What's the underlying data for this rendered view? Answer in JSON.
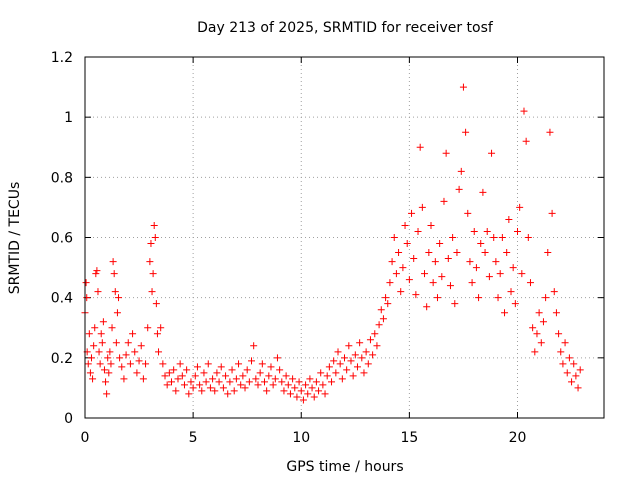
{
  "chart_data": {
    "type": "scatter",
    "title": "Day 213 of 2025, SRMTID for receiver tosf",
    "xlabel": "GPS time / hours",
    "ylabel": "SRMTID / TECUs",
    "xlim": [
      0,
      24
    ],
    "ylim": [
      0,
      1.2
    ],
    "x_ticks": [
      0,
      5,
      10,
      15,
      20
    ],
    "x_tick_labels": [
      "0",
      "5",
      "10",
      "15",
      "20"
    ],
    "y_ticks": [
      0,
      0.2,
      0.4,
      0.6,
      0.8,
      1.0,
      1.2
    ],
    "y_tick_labels": [
      "0",
      "0.2",
      "0.4",
      "0.6",
      "0.8",
      "1",
      "1.2"
    ],
    "grid": true,
    "marker": "+",
    "series_color": "#ff0000",
    "series": [
      {
        "name": "SRMTID",
        "points": [
          [
            0.0,
            0.35
          ],
          [
            0.05,
            0.45
          ],
          [
            0.08,
            0.4
          ],
          [
            0.1,
            0.22
          ],
          [
            0.15,
            0.18
          ],
          [
            0.2,
            0.28
          ],
          [
            0.25,
            0.15
          ],
          [
            0.3,
            0.2
          ],
          [
            0.35,
            0.13
          ],
          [
            0.4,
            0.24
          ],
          [
            0.45,
            0.3
          ],
          [
            0.5,
            0.48
          ],
          [
            0.55,
            0.49
          ],
          [
            0.6,
            0.42
          ],
          [
            0.65,
            0.22
          ],
          [
            0.7,
            0.18
          ],
          [
            0.75,
            0.28
          ],
          [
            0.8,
            0.25
          ],
          [
            0.85,
            0.32
          ],
          [
            0.9,
            0.16
          ],
          [
            0.95,
            0.12
          ],
          [
            1.0,
            0.08
          ],
          [
            1.05,
            0.2
          ],
          [
            1.1,
            0.15
          ],
          [
            1.15,
            0.22
          ],
          [
            1.2,
            0.18
          ],
          [
            1.25,
            0.3
          ],
          [
            1.3,
            0.52
          ],
          [
            1.35,
            0.48
          ],
          [
            1.4,
            0.42
          ],
          [
            1.45,
            0.25
          ],
          [
            1.5,
            0.35
          ],
          [
            1.55,
            0.4
          ],
          [
            1.6,
            0.2
          ],
          [
            1.7,
            0.17
          ],
          [
            1.8,
            0.13
          ],
          [
            1.9,
            0.21
          ],
          [
            2.0,
            0.25
          ],
          [
            2.1,
            0.18
          ],
          [
            2.2,
            0.28
          ],
          [
            2.3,
            0.22
          ],
          [
            2.4,
            0.15
          ],
          [
            2.5,
            0.19
          ],
          [
            2.6,
            0.24
          ],
          [
            2.7,
            0.13
          ],
          [
            2.8,
            0.18
          ],
          [
            2.9,
            0.3
          ],
          [
            3.0,
            0.52
          ],
          [
            3.05,
            0.58
          ],
          [
            3.1,
            0.42
          ],
          [
            3.15,
            0.48
          ],
          [
            3.2,
            0.64
          ],
          [
            3.25,
            0.6
          ],
          [
            3.3,
            0.38
          ],
          [
            3.35,
            0.28
          ],
          [
            3.4,
            0.22
          ],
          [
            3.5,
            0.3
          ],
          [
            3.6,
            0.18
          ],
          [
            3.7,
            0.14
          ],
          [
            3.8,
            0.11
          ],
          [
            3.9,
            0.15
          ],
          [
            4.0,
            0.12
          ],
          [
            4.1,
            0.16
          ],
          [
            4.2,
            0.09
          ],
          [
            4.3,
            0.13
          ],
          [
            4.4,
            0.18
          ],
          [
            4.5,
            0.14
          ],
          [
            4.6,
            0.11
          ],
          [
            4.7,
            0.16
          ],
          [
            4.8,
            0.08
          ],
          [
            4.9,
            0.12
          ],
          [
            5.0,
            0.1
          ],
          [
            5.1,
            0.14
          ],
          [
            5.2,
            0.17
          ],
          [
            5.3,
            0.11
          ],
          [
            5.4,
            0.09
          ],
          [
            5.5,
            0.15
          ],
          [
            5.6,
            0.12
          ],
          [
            5.7,
            0.18
          ],
          [
            5.8,
            0.1
          ],
          [
            5.9,
            0.13
          ],
          [
            6.0,
            0.09
          ],
          [
            6.1,
            0.15
          ],
          [
            6.2,
            0.12
          ],
          [
            6.3,
            0.17
          ],
          [
            6.4,
            0.1
          ],
          [
            6.5,
            0.14
          ],
          [
            6.6,
            0.08
          ],
          [
            6.7,
            0.12
          ],
          [
            6.8,
            0.16
          ],
          [
            6.9,
            0.09
          ],
          [
            7.0,
            0.13
          ],
          [
            7.1,
            0.18
          ],
          [
            7.2,
            0.11
          ],
          [
            7.3,
            0.14
          ],
          [
            7.4,
            0.1
          ],
          [
            7.5,
            0.16
          ],
          [
            7.6,
            0.12
          ],
          [
            7.7,
            0.19
          ],
          [
            7.8,
            0.24
          ],
          [
            7.9,
            0.13
          ],
          [
            8.0,
            0.11
          ],
          [
            8.1,
            0.15
          ],
          [
            8.2,
            0.18
          ],
          [
            8.3,
            0.12
          ],
          [
            8.4,
            0.09
          ],
          [
            8.5,
            0.14
          ],
          [
            8.6,
            0.17
          ],
          [
            8.7,
            0.11
          ],
          [
            8.8,
            0.13
          ],
          [
            8.9,
            0.2
          ],
          [
            9.0,
            0.16
          ],
          [
            9.1,
            0.12
          ],
          [
            9.2,
            0.09
          ],
          [
            9.3,
            0.14
          ],
          [
            9.4,
            0.11
          ],
          [
            9.5,
            0.08
          ],
          [
            9.6,
            0.13
          ],
          [
            9.7,
            0.1
          ],
          [
            9.8,
            0.07
          ],
          [
            9.9,
            0.12
          ],
          [
            10.0,
            0.09
          ],
          [
            10.1,
            0.06
          ],
          [
            10.2,
            0.11
          ],
          [
            10.3,
            0.08
          ],
          [
            10.4,
            0.13
          ],
          [
            10.5,
            0.1
          ],
          [
            10.6,
            0.07
          ],
          [
            10.7,
            0.12
          ],
          [
            10.8,
            0.09
          ],
          [
            10.9,
            0.15
          ],
          [
            11.0,
            0.11
          ],
          [
            11.1,
            0.08
          ],
          [
            11.2,
            0.14
          ],
          [
            11.3,
            0.17
          ],
          [
            11.4,
            0.12
          ],
          [
            11.5,
            0.19
          ],
          [
            11.6,
            0.15
          ],
          [
            11.7,
            0.22
          ],
          [
            11.8,
            0.18
          ],
          [
            11.9,
            0.13
          ],
          [
            12.0,
            0.2
          ],
          [
            12.1,
            0.16
          ],
          [
            12.2,
            0.24
          ],
          [
            12.3,
            0.19
          ],
          [
            12.4,
            0.14
          ],
          [
            12.5,
            0.21
          ],
          [
            12.6,
            0.17
          ],
          [
            12.7,
            0.25
          ],
          [
            12.8,
            0.2
          ],
          [
            12.9,
            0.15
          ],
          [
            13.0,
            0.22
          ],
          [
            13.1,
            0.18
          ],
          [
            13.2,
            0.26
          ],
          [
            13.3,
            0.21
          ],
          [
            13.4,
            0.28
          ],
          [
            13.5,
            0.24
          ],
          [
            13.6,
            0.31
          ],
          [
            13.7,
            0.36
          ],
          [
            13.8,
            0.33
          ],
          [
            13.9,
            0.4
          ],
          [
            14.0,
            0.38
          ],
          [
            14.1,
            0.45
          ],
          [
            14.2,
            0.52
          ],
          [
            14.3,
            0.6
          ],
          [
            14.4,
            0.48
          ],
          [
            14.5,
            0.55
          ],
          [
            14.6,
            0.42
          ],
          [
            14.7,
            0.5
          ],
          [
            14.8,
            0.64
          ],
          [
            14.9,
            0.58
          ],
          [
            15.0,
            0.46
          ],
          [
            15.1,
            0.68
          ],
          [
            15.2,
            0.53
          ],
          [
            15.3,
            0.41
          ],
          [
            15.4,
            0.62
          ],
          [
            15.5,
            0.9
          ],
          [
            15.6,
            0.7
          ],
          [
            15.7,
            0.48
          ],
          [
            15.8,
            0.37
          ],
          [
            15.9,
            0.55
          ],
          [
            16.0,
            0.64
          ],
          [
            16.1,
            0.45
          ],
          [
            16.2,
            0.52
          ],
          [
            16.3,
            0.4
          ],
          [
            16.4,
            0.58
          ],
          [
            16.5,
            0.47
          ],
          [
            16.6,
            0.72
          ],
          [
            16.7,
            0.88
          ],
          [
            16.8,
            0.53
          ],
          [
            16.9,
            0.44
          ],
          [
            17.0,
            0.6
          ],
          [
            17.1,
            0.38
          ],
          [
            17.2,
            0.55
          ],
          [
            17.3,
            0.76
          ],
          [
            17.4,
            0.82
          ],
          [
            17.5,
            1.1
          ],
          [
            17.6,
            0.95
          ],
          [
            17.7,
            0.68
          ],
          [
            17.8,
            0.52
          ],
          [
            17.9,
            0.45
          ],
          [
            18.0,
            0.62
          ],
          [
            18.1,
            0.5
          ],
          [
            18.2,
            0.4
          ],
          [
            18.3,
            0.58
          ],
          [
            18.4,
            0.75
          ],
          [
            18.5,
            0.55
          ],
          [
            18.6,
            0.62
          ],
          [
            18.7,
            0.47
          ],
          [
            18.8,
            0.88
          ],
          [
            18.9,
            0.6
          ],
          [
            19.0,
            0.52
          ],
          [
            19.1,
            0.4
          ],
          [
            19.2,
            0.48
          ],
          [
            19.3,
            0.6
          ],
          [
            19.4,
            0.35
          ],
          [
            19.5,
            0.55
          ],
          [
            19.6,
            0.66
          ],
          [
            19.7,
            0.42
          ],
          [
            19.8,
            0.5
          ],
          [
            19.9,
            0.38
          ],
          [
            20.0,
            0.62
          ],
          [
            20.1,
            0.7
          ],
          [
            20.2,
            0.48
          ],
          [
            20.3,
            1.02
          ],
          [
            20.4,
            0.92
          ],
          [
            20.5,
            0.6
          ],
          [
            20.6,
            0.45
          ],
          [
            20.7,
            0.3
          ],
          [
            20.8,
            0.22
          ],
          [
            20.9,
            0.28
          ],
          [
            21.0,
            0.35
          ],
          [
            21.1,
            0.25
          ],
          [
            21.2,
            0.32
          ],
          [
            21.3,
            0.4
          ],
          [
            21.4,
            0.55
          ],
          [
            21.5,
            0.95
          ],
          [
            21.6,
            0.68
          ],
          [
            21.7,
            0.42
          ],
          [
            21.8,
            0.35
          ],
          [
            21.9,
            0.28
          ],
          [
            22.0,
            0.22
          ],
          [
            22.1,
            0.18
          ],
          [
            22.2,
            0.25
          ],
          [
            22.3,
            0.15
          ],
          [
            22.4,
            0.2
          ],
          [
            22.5,
            0.12
          ],
          [
            22.6,
            0.18
          ],
          [
            22.7,
            0.14
          ],
          [
            22.8,
            0.1
          ],
          [
            22.9,
            0.16
          ]
        ]
      }
    ]
  }
}
